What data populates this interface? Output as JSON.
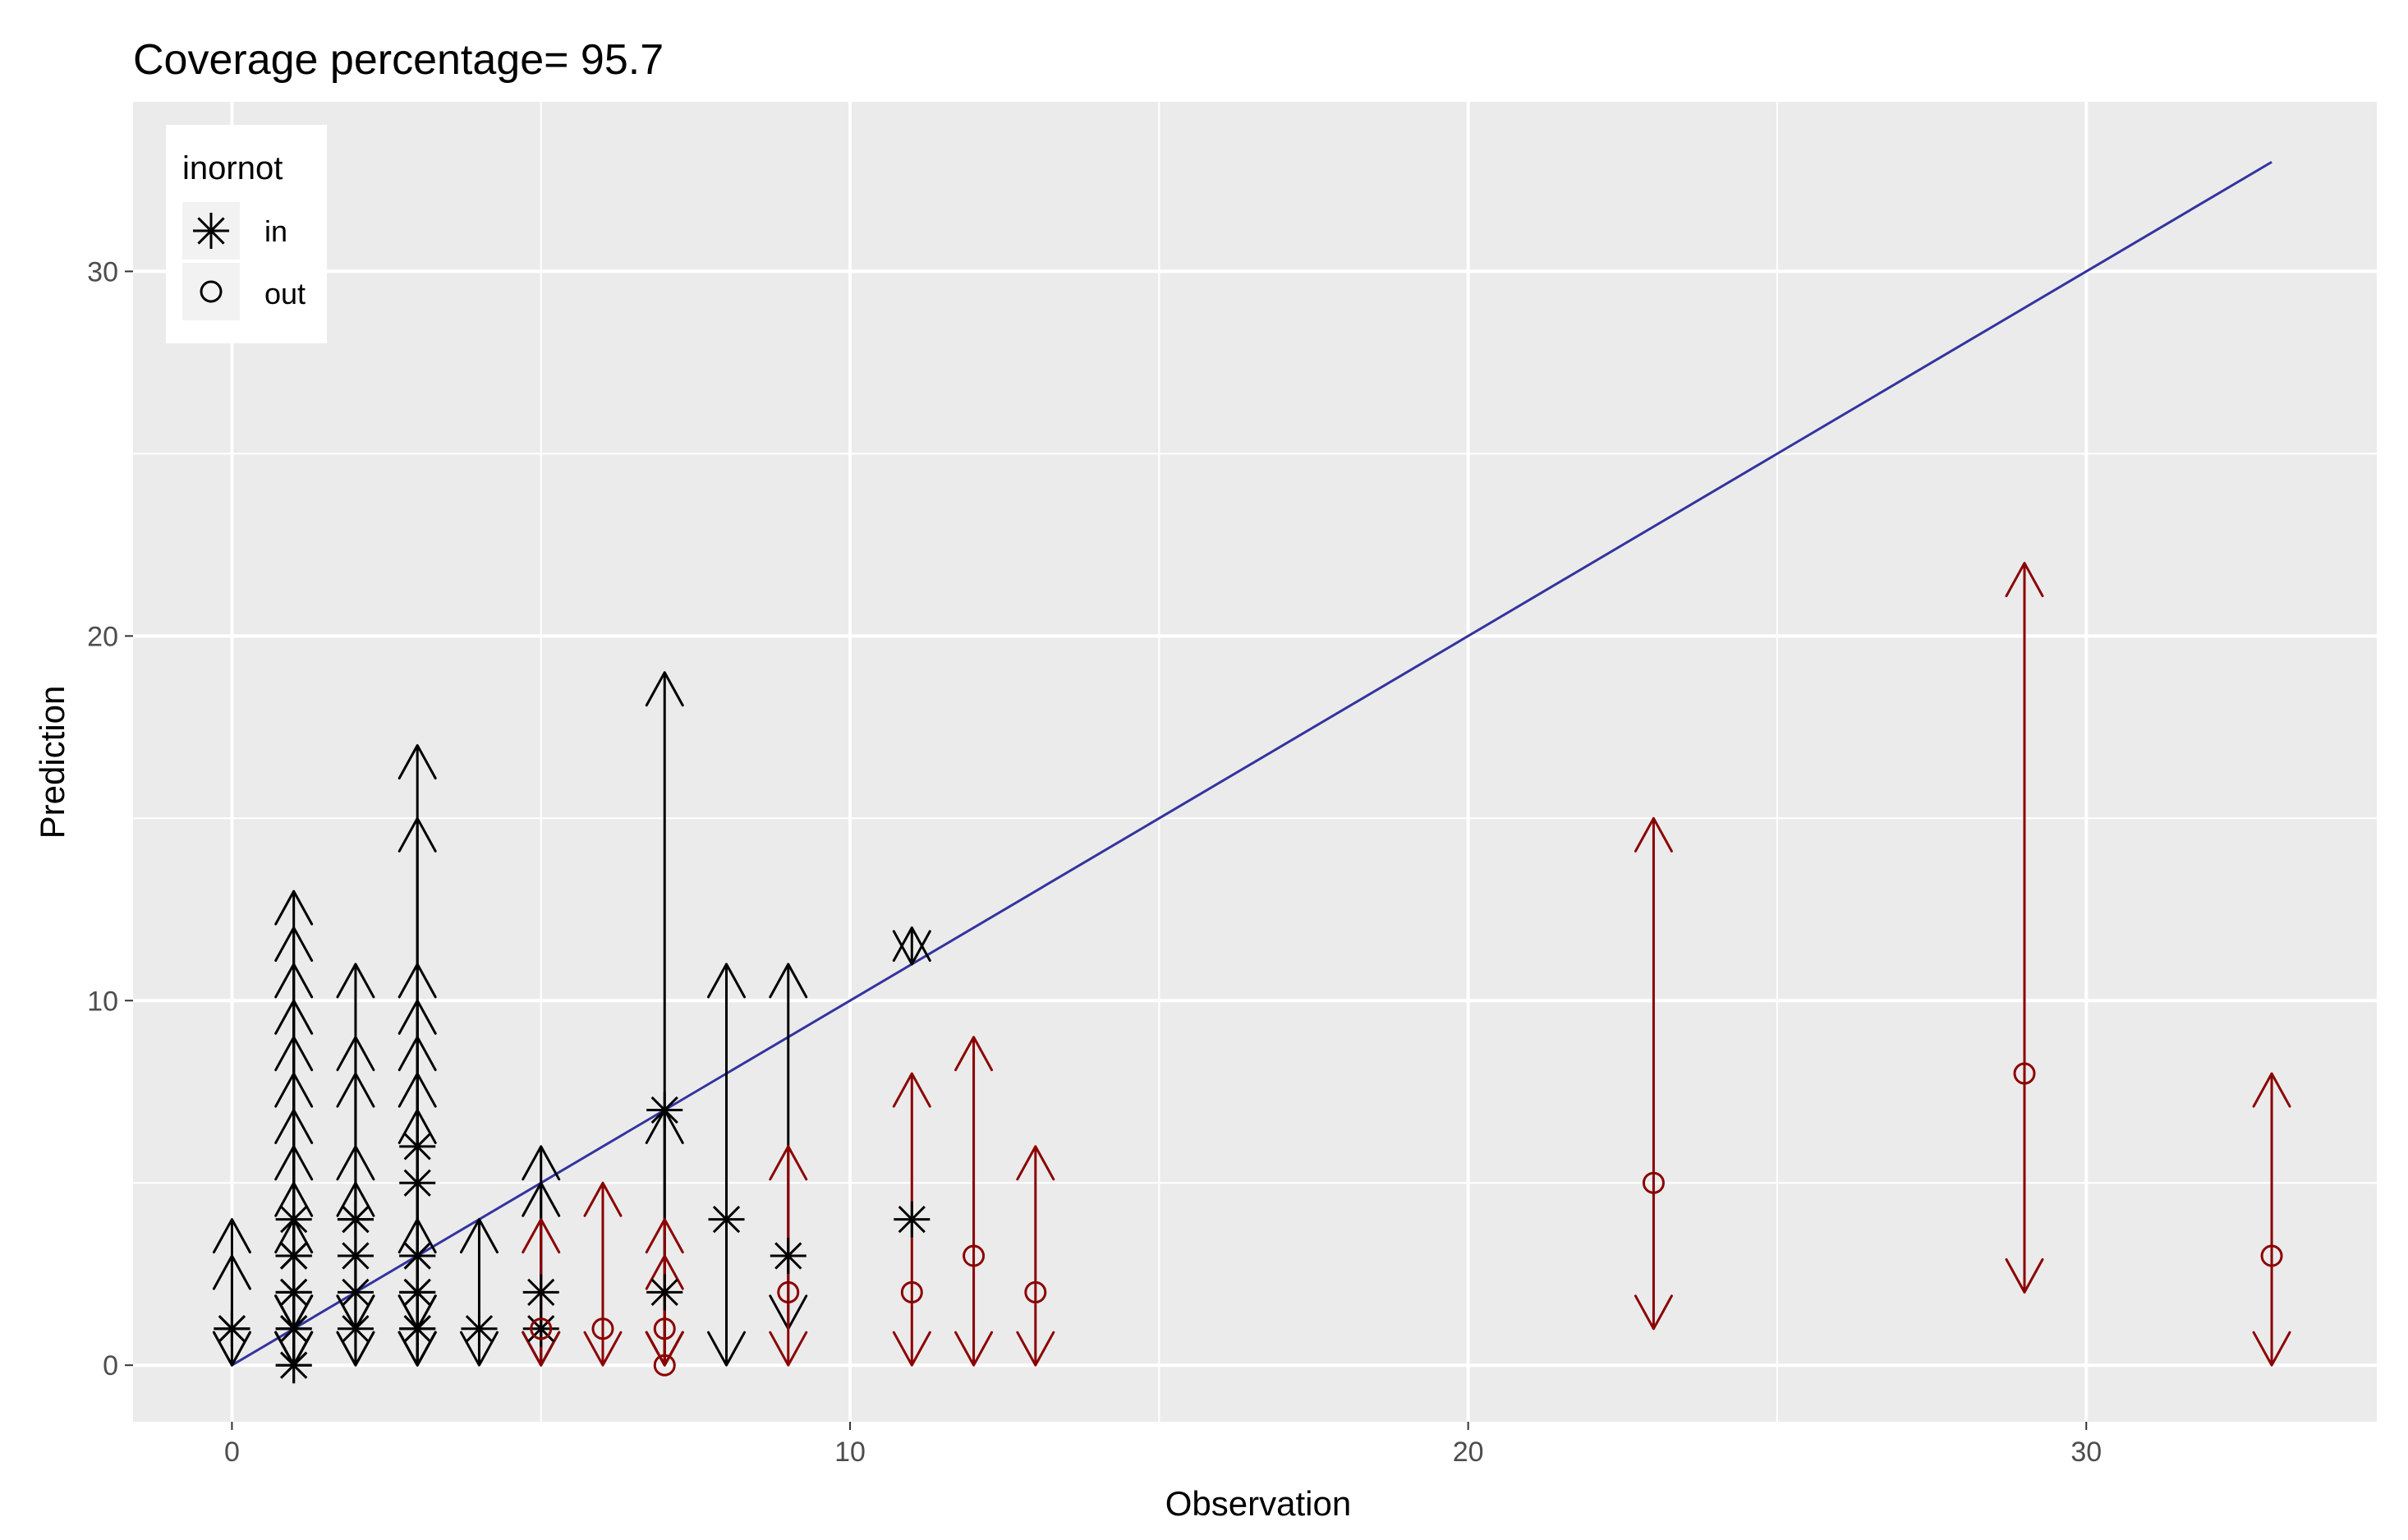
{
  "chart_data": {
    "type": "scatter",
    "title": "Coverage percentage= 95.7",
    "xlabel": "Observation",
    "ylabel": "Prediction",
    "xlim": [
      -1.6,
      34.7
    ],
    "ylim": [
      -1.55,
      34.65
    ],
    "x_ticks": [
      0,
      10,
      20,
      30
    ],
    "y_ticks": [
      0,
      10,
      20,
      30
    ],
    "grid": true,
    "legend": {
      "title": "inornot",
      "position": "top-left",
      "entries": [
        {
          "label": "in",
          "shape": "asterisk"
        },
        {
          "label": "out",
          "shape": "circle"
        }
      ]
    },
    "reference_line": {
      "label": "",
      "from": [
        0,
        0
      ],
      "to": [
        33,
        33
      ]
    },
    "series": [
      {
        "name": "in",
        "shape": "asterisk",
        "points": [
          {
            "x": 0,
            "y": 1,
            "lo": 0,
            "hi": 4
          },
          {
            "x": 0,
            "y": 1,
            "lo": 0,
            "hi": 3
          },
          {
            "x": 1,
            "y": 0,
            "lo": 0,
            "hi": 13
          },
          {
            "x": 1,
            "y": 1,
            "lo": 0,
            "hi": 12
          },
          {
            "x": 1,
            "y": 2,
            "lo": 1,
            "hi": 11
          },
          {
            "x": 1,
            "y": 3,
            "lo": 1,
            "hi": 10
          },
          {
            "x": 1,
            "y": 3,
            "lo": 1,
            "hi": 9
          },
          {
            "x": 1,
            "y": 3,
            "lo": 1,
            "hi": 8
          },
          {
            "x": 1,
            "y": 4,
            "lo": 1,
            "hi": 7
          },
          {
            "x": 1,
            "y": 2,
            "lo": 0,
            "hi": 6
          },
          {
            "x": 1,
            "y": 1,
            "lo": 0,
            "hi": 5
          },
          {
            "x": 1,
            "y": 0,
            "lo": 0,
            "hi": 4
          },
          {
            "x": 2,
            "y": 2,
            "lo": 0,
            "hi": 11
          },
          {
            "x": 2,
            "y": 3,
            "lo": 1,
            "hi": 9
          },
          {
            "x": 2,
            "y": 4,
            "lo": 1,
            "hi": 8
          },
          {
            "x": 2,
            "y": 1,
            "lo": 0,
            "hi": 6
          },
          {
            "x": 2,
            "y": 4,
            "lo": 1,
            "hi": 5
          },
          {
            "x": 3,
            "y": 3,
            "lo": 0,
            "hi": 17
          },
          {
            "x": 3,
            "y": 5,
            "lo": 1,
            "hi": 15
          },
          {
            "x": 3,
            "y": 6,
            "lo": 1,
            "hi": 11
          },
          {
            "x": 3,
            "y": 2,
            "lo": 0,
            "hi": 10
          },
          {
            "x": 3,
            "y": 3,
            "lo": 1,
            "hi": 9
          },
          {
            "x": 3,
            "y": 1,
            "lo": 0,
            "hi": 8
          },
          {
            "x": 3,
            "y": 2,
            "lo": 0,
            "hi": 7
          },
          {
            "x": 3,
            "y": 1,
            "lo": 0,
            "hi": 4
          },
          {
            "x": 4,
            "y": 1,
            "lo": 0,
            "hi": 4
          },
          {
            "x": 5,
            "y": 2,
            "lo": 0,
            "hi": 6
          },
          {
            "x": 5,
            "y": 1,
            "lo": 0,
            "hi": 5
          },
          {
            "x": 7,
            "y": 7,
            "lo": 0,
            "hi": 19
          },
          {
            "x": 7,
            "y": 2,
            "lo": 0,
            "hi": 7
          },
          {
            "x": 8,
            "y": 4,
            "lo": 0,
            "hi": 11
          },
          {
            "x": 9,
            "y": 3,
            "lo": 1,
            "hi": 11
          },
          {
            "x": 11,
            "y": 4,
            "lo": 11,
            "hi": 12
          }
        ]
      },
      {
        "name": "out",
        "shape": "circle",
        "points": [
          {
            "x": 5,
            "y": 1,
            "lo": 0,
            "hi": 4
          },
          {
            "x": 6,
            "y": 1,
            "lo": 0,
            "hi": 5
          },
          {
            "x": 7,
            "y": 1,
            "lo": 0,
            "hi": 4
          },
          {
            "x": 7,
            "y": 0,
            "lo": 0,
            "hi": 3
          },
          {
            "x": 9,
            "y": 2,
            "lo": 0,
            "hi": 6
          },
          {
            "x": 11,
            "y": 2,
            "lo": 0,
            "hi": 8
          },
          {
            "x": 12,
            "y": 3,
            "lo": 0,
            "hi": 9
          },
          {
            "x": 13,
            "y": 2,
            "lo": 0,
            "hi": 6
          },
          {
            "x": 23,
            "y": 5,
            "lo": 1,
            "hi": 15
          },
          {
            "x": 29,
            "y": 8,
            "lo": 2,
            "hi": 22
          },
          {
            "x": 33,
            "y": 3,
            "lo": 0,
            "hi": 8
          }
        ]
      }
    ],
    "colors": {
      "panel_bg": "#ebebeb",
      "grid": "#ffffff",
      "in_color": "#000000",
      "out_color": "#8b0000",
      "reference_line": "#3333a0",
      "legend_key_bg": "#f2f2f2"
    }
  }
}
